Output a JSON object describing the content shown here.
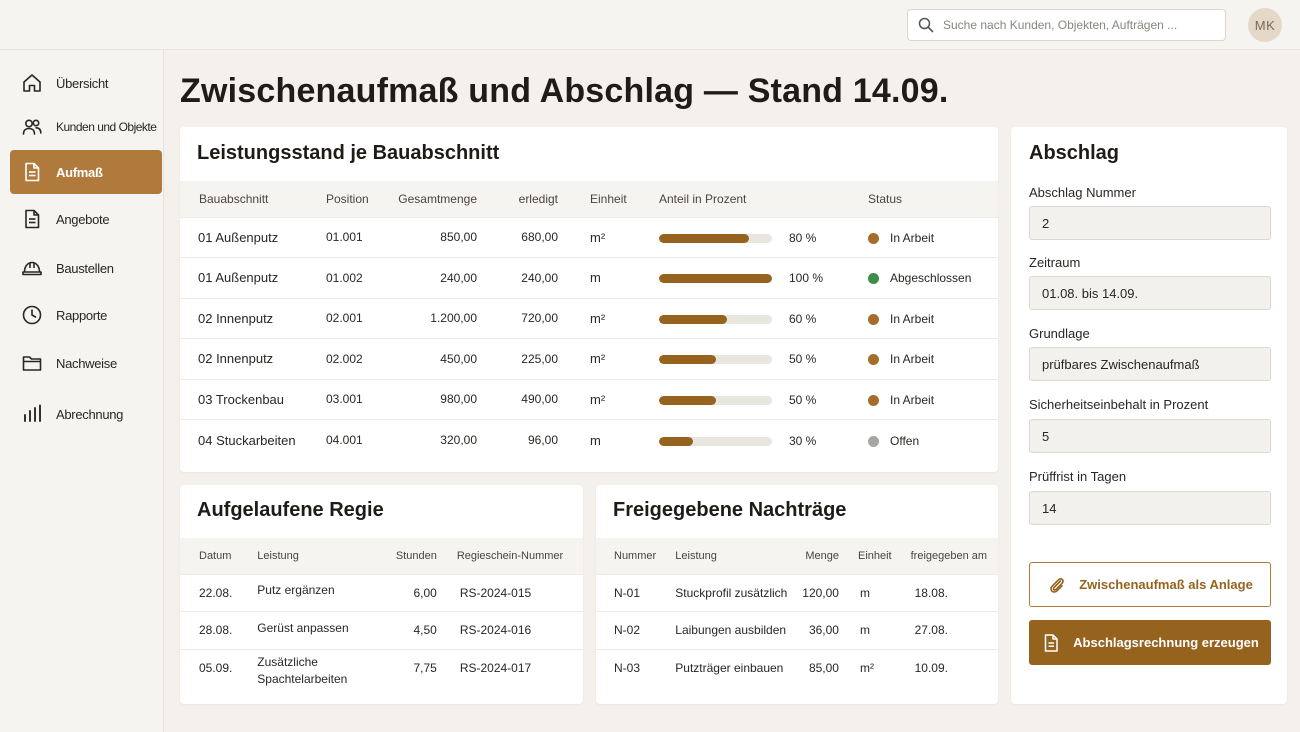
{
  "search": {
    "placeholder": "Suche nach Kunden, Objekten, Aufträgen ..."
  },
  "user": {
    "initials": "MK"
  },
  "sidebar": {
    "items": [
      {
        "label": "Übersicht",
        "icon": "home-icon"
      },
      {
        "label": "Kunden und Objekte",
        "icon": "users-icon"
      },
      {
        "label": "Aufmaß",
        "icon": "document-icon",
        "active": true
      },
      {
        "label": "Angebote",
        "icon": "document-icon"
      },
      {
        "label": "Baustellen",
        "icon": "helmet-icon"
      },
      {
        "label": "Rapporte",
        "icon": "clock-icon"
      },
      {
        "label": "Nachweise",
        "icon": "folder-icon"
      },
      {
        "label": "Abrechnung",
        "icon": "bar-chart-icon"
      }
    ]
  },
  "page": {
    "title": "Zwischenaufmaß und Abschlag — Stand 14.09."
  },
  "leistung": {
    "title": "Leistungsstand je Bauabschnitt",
    "headers": [
      "Bauabschnitt",
      "Position",
      "Gesamtmenge",
      "erledigt",
      "Einheit",
      "Anteil in Prozent",
      "Status"
    ],
    "rows": [
      {
        "abschnitt": "01 Außenputz",
        "position": "01.001",
        "gesamt": "850,00",
        "erledigt": "680,00",
        "einheit": "m²",
        "anteil": 80,
        "anteil_label": "80 %",
        "status": "In Arbeit",
        "status_color": "#a56d2a"
      },
      {
        "abschnitt": "01 Außenputz",
        "position": "01.002",
        "gesamt": "240,00",
        "erledigt": "240,00",
        "einheit": "m",
        "anteil": 100,
        "anteil_label": "100 %",
        "status": "Abgeschlossen",
        "status_color": "#3d8c4a"
      },
      {
        "abschnitt": "02 Innenputz",
        "position": "02.001",
        "gesamt": "1.200,00",
        "erledigt": "720,00",
        "einheit": "m²",
        "anteil": 60,
        "anteil_label": "60 %",
        "status": "In Arbeit",
        "status_color": "#a56d2a"
      },
      {
        "abschnitt": "02 Innenputz",
        "position": "02.002",
        "gesamt": "450,00",
        "erledigt": "225,00",
        "einheit": "m²",
        "anteil": 50,
        "anteil_label": "50 %",
        "status": "In Arbeit",
        "status_color": "#a56d2a"
      },
      {
        "abschnitt": "03 Trockenbau",
        "position": "03.001",
        "gesamt": "980,00",
        "erledigt": "490,00",
        "einheit": "m²",
        "anteil": 50,
        "anteil_label": "50 %",
        "status": "In Arbeit",
        "status_color": "#a56d2a"
      },
      {
        "abschnitt": "04 Stuckarbeiten",
        "position": "04.001",
        "gesamt": "320,00",
        "erledigt": "96,00",
        "einheit": "m",
        "anteil": 30,
        "anteil_label": "30 %",
        "status": "Offen",
        "status_color": "#a8a6a2"
      }
    ]
  },
  "regie": {
    "title": "Aufgelaufene Regie",
    "headers": [
      "Datum",
      "Leistung",
      "Stunden",
      "Regieschein-Nummer"
    ],
    "rows": [
      {
        "datum": "22.08.",
        "leistung": "Putz ergänzen",
        "stunden": "6,00",
        "nummer": "RS-2024-015"
      },
      {
        "datum": "28.08.",
        "leistung": "Gerüst anpassen",
        "stunden": "4,50",
        "nummer": "RS-2024-016"
      },
      {
        "datum": "05.09.",
        "leistung": "Zusätzliche Spachtelarbeiten",
        "stunden": "7,75",
        "nummer": "RS-2024-017"
      }
    ]
  },
  "nachtraege": {
    "title": "Freigegebene Nachträge",
    "headers": [
      "Nummer",
      "Leistung",
      "Menge",
      "Einheit",
      "freigegeben am"
    ],
    "rows": [
      {
        "nummer": "N-01",
        "leistung": "Stuckprofil zusätzlich",
        "menge": "120,00",
        "einheit": "m",
        "datum": "18.08."
      },
      {
        "nummer": "N-02",
        "leistung": "Laibungen ausbilden",
        "menge": "36,00",
        "einheit": "m",
        "datum": "27.08."
      },
      {
        "nummer": "N-03",
        "leistung": "Putzträger einbauen",
        "menge": "85,00",
        "einheit": "m²",
        "datum": "10.09."
      }
    ]
  },
  "abschlag": {
    "title": "Abschlag",
    "fields": [
      {
        "label": "Abschlag Nummer",
        "value": "2"
      },
      {
        "label": "Zeitraum",
        "value": "01.08. bis 14.09."
      },
      {
        "label": "Grundlage",
        "value": "prüfbares Zwischenaufmaß"
      },
      {
        "label": "Sicherheitseinbehalt in Prozent",
        "value": "5"
      },
      {
        "label": "Prüffrist in Tagen",
        "value": "14"
      }
    ],
    "attach_label": "Zwischenaufmaß als Anlage",
    "create_label": "Abschlagsrechnung erzeugen"
  },
  "colors": {
    "accent": "#b07a3c",
    "accent_dark": "#96631f"
  }
}
